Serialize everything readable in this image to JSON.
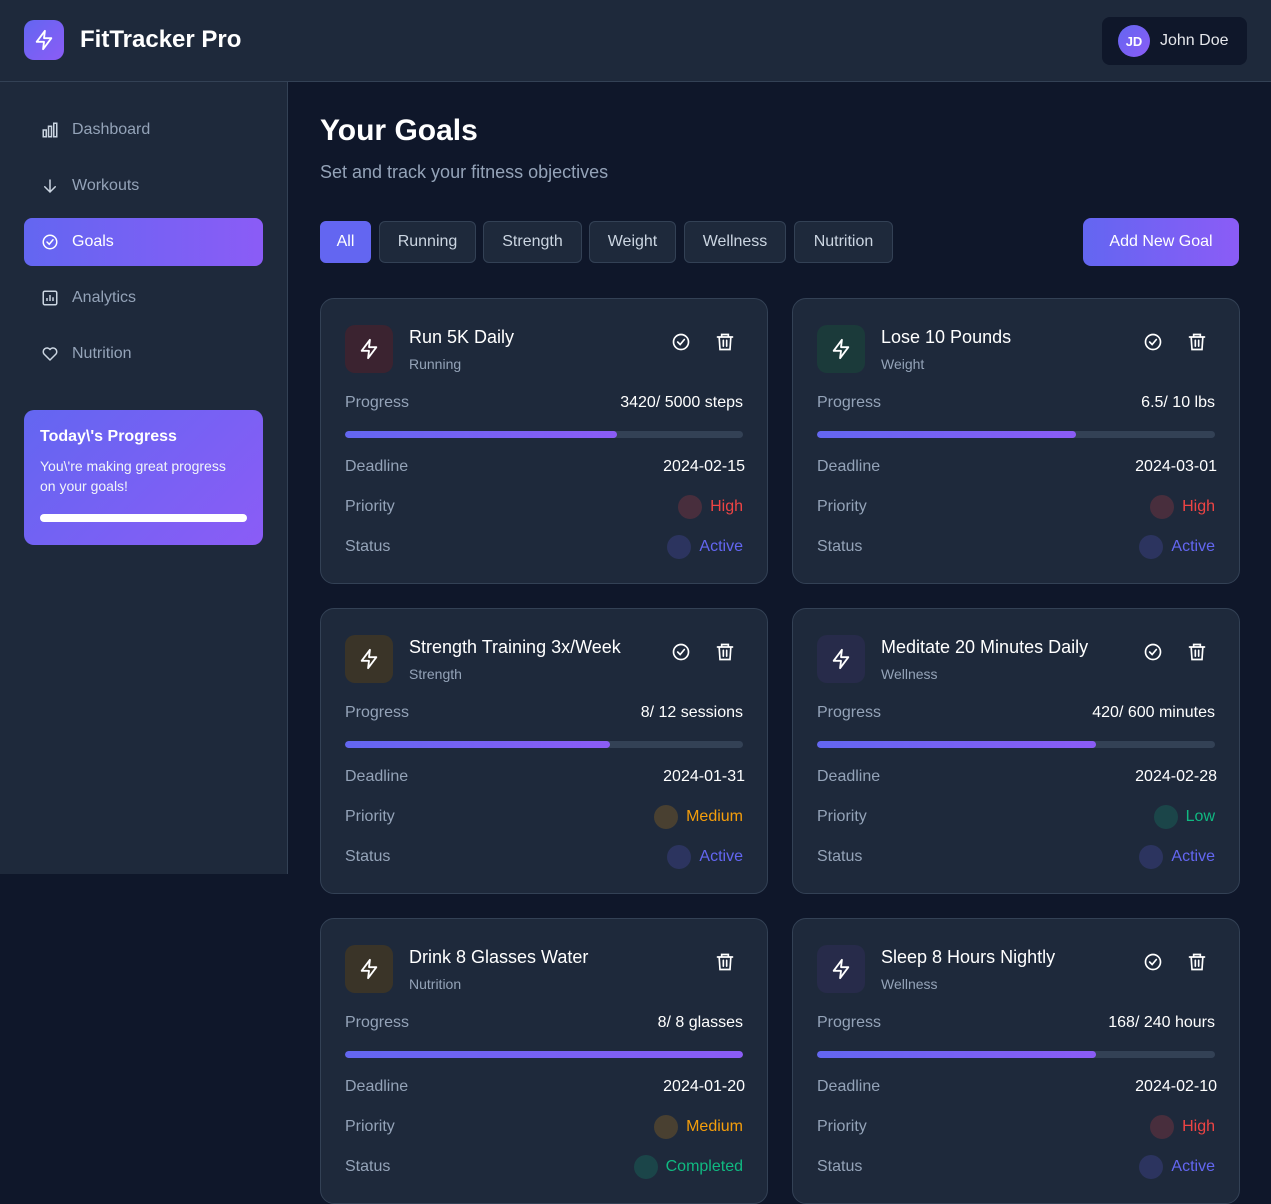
{
  "app": {
    "title": "FitTracker Pro",
    "logo_icon": "lightning-icon"
  },
  "user": {
    "initials": "JD",
    "name": "John Doe"
  },
  "sidebar": {
    "items": [
      {
        "label": "Dashboard",
        "icon": "bar-chart-icon",
        "active": false
      },
      {
        "label": "Workouts",
        "icon": "arrow-down-icon",
        "active": false
      },
      {
        "label": "Goals",
        "icon": "check-circle-icon",
        "active": true
      },
      {
        "label": "Analytics",
        "icon": "analytics-icon",
        "active": false
      },
      {
        "label": "Nutrition",
        "icon": "heart-icon",
        "active": false
      }
    ],
    "progress_card": {
      "title": "Today\\'s Progress",
      "text": "You\\'re making great progress on your goals!",
      "progress": 1.0
    }
  },
  "main": {
    "title": "Your Goals",
    "subtitle": "Set and track your fitness objectives",
    "filters": [
      "All",
      "Running",
      "Strength",
      "Weight",
      "Wellness",
      "Nutrition"
    ],
    "active_filter": "All",
    "add_button": "Add New Goal"
  },
  "labels": {
    "progress": "Progress",
    "deadline": "Deadline",
    "priority": "Priority",
    "status": "Status"
  },
  "colors": {
    "accent": "#6366f1",
    "accent2": "#8b5cf6",
    "high": "#ef4444",
    "medium": "#f59e0b",
    "low": "#10b981",
    "active": "#6366f1",
    "completed": "#10b981"
  },
  "goals": [
    {
      "title": "Run 5K Daily",
      "category": "Running",
      "progress_text": "3420/  5000 steps",
      "progress": 0.684,
      "deadline": "2024-02-15",
      "priority": "High",
      "status": "Active",
      "show_complete": true,
      "icon_bg": "#3b2330",
      "icon_color": "#f87171"
    },
    {
      "title": "Lose 10 Pounds",
      "category": "Weight",
      "progress_text": "6.5/  10 lbs",
      "progress": 0.65,
      "deadline": "2024-03-01",
      "priority": "High",
      "status": "Active",
      "show_complete": true,
      "icon_bg": "#1b3a3a",
      "icon_color": "#34d399"
    },
    {
      "title": "Strength Training 3x/Week",
      "category": "Strength",
      "progress_text": "8/  12 sessions",
      "progress": 0.667,
      "deadline": "2024-01-31",
      "priority": "Medium",
      "status": "Active",
      "show_complete": true,
      "icon_bg": "#3a3428",
      "icon_color": "#fbbf24"
    },
    {
      "title": "Meditate 20 Minutes Daily",
      "category": "Wellness",
      "progress_text": "420/  600 minutes",
      "progress": 0.7,
      "deadline": "2024-02-28",
      "priority": "Low",
      "status": "Active",
      "show_complete": true,
      "icon_bg": "#272b4a",
      "icon_color": "#a5b4fc"
    },
    {
      "title": "Drink 8 Glasses Water",
      "category": "Nutrition",
      "progress_text": "8/  8 glasses",
      "progress": 1.0,
      "deadline": "2024-01-20",
      "priority": "Medium",
      "status": "Completed",
      "show_complete": false,
      "icon_bg": "#3a3428",
      "icon_color": "#fbbf24"
    },
    {
      "title": "Sleep 8 Hours Nightly",
      "category": "Wellness",
      "progress_text": "168/  240 hours",
      "progress": 0.7,
      "deadline": "2024-02-10",
      "priority": "High",
      "status": "Active",
      "show_complete": true,
      "icon_bg": "#272b4a",
      "icon_color": "#a5b4fc"
    }
  ]
}
